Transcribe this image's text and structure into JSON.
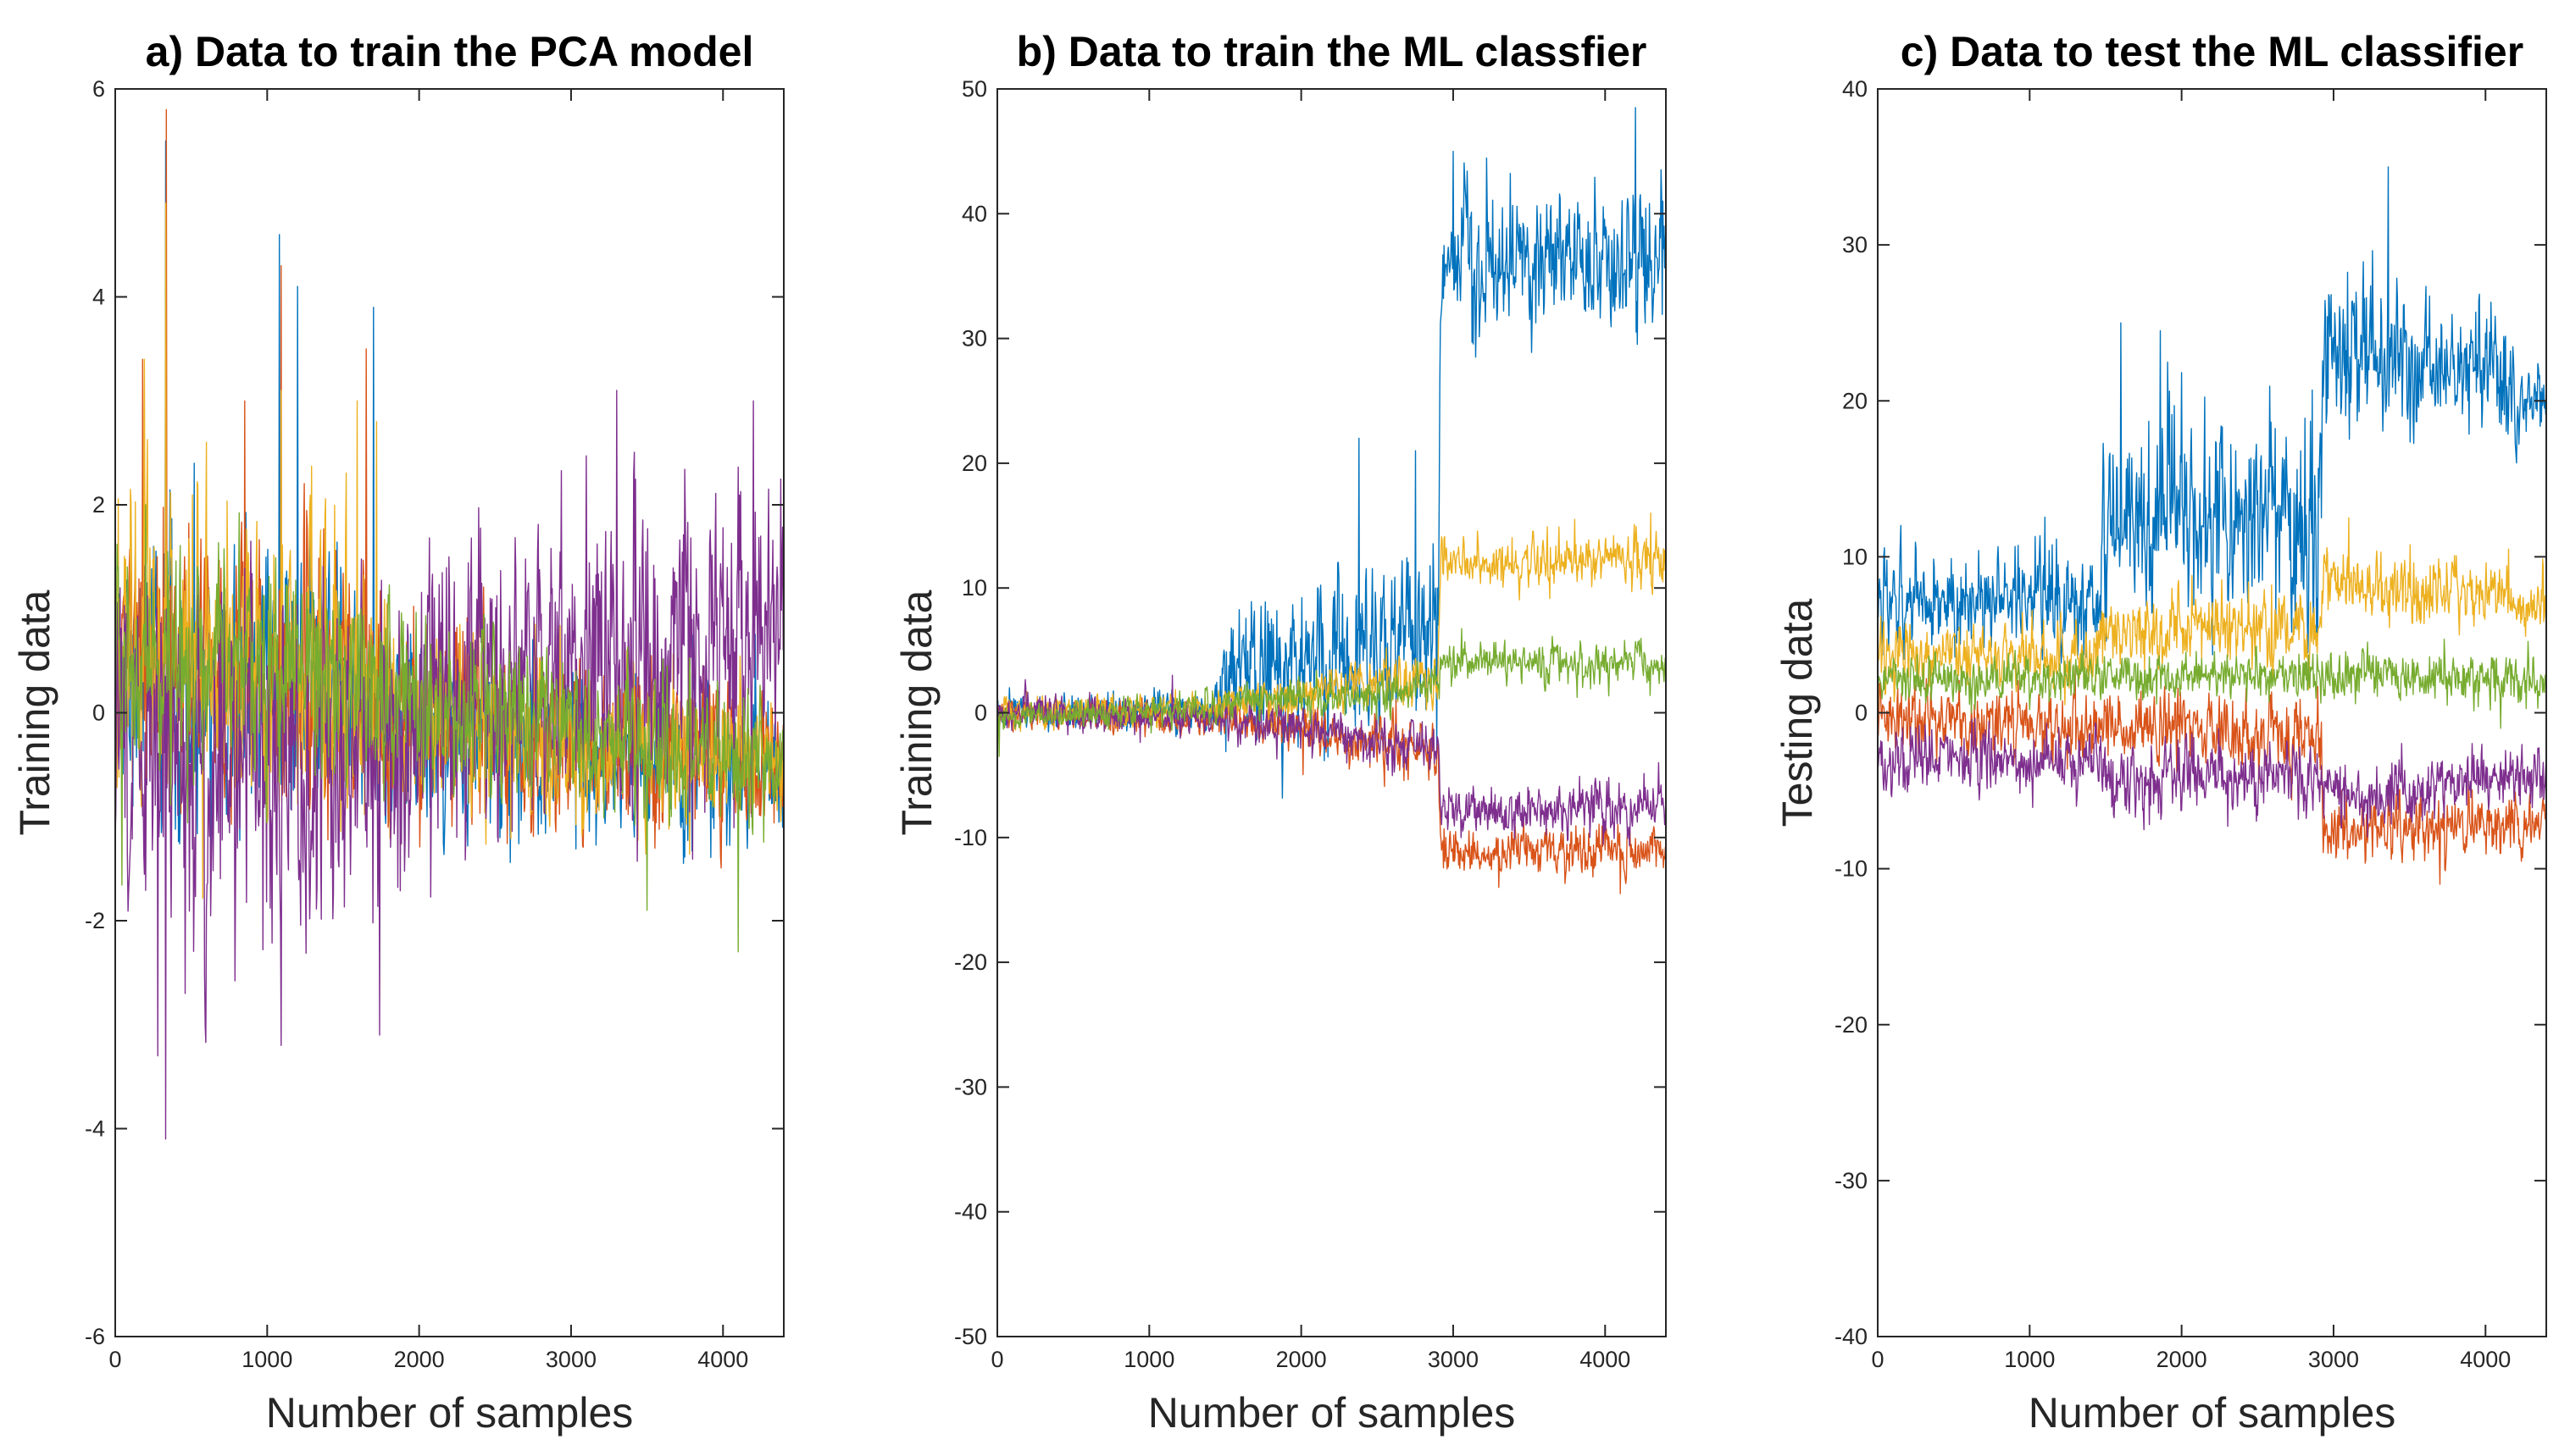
{
  "chart_data": [
    {
      "type": "line",
      "title": "a) Data to train the PCA model",
      "xlabel": "Number of samples",
      "ylabel": "Training data",
      "xlim": [
        0,
        4400
      ],
      "ylim": [
        -6,
        6
      ],
      "xticks": [
        0,
        1000,
        2000,
        3000,
        4000
      ],
      "yticks": [
        -6,
        -4,
        -2,
        0,
        2,
        4,
        6
      ],
      "grid": false,
      "legend": "none",
      "series": [
        {
          "name": "series-1",
          "color": "#0072BD",
          "stats": [
            [
              0,
              0.3,
              0.8
            ],
            [
              1500,
              0.3,
              0.8
            ],
            [
              1700,
              0.1,
              0.6
            ],
            [
              3300,
              -0.4,
              0.5
            ],
            [
              4400,
              -0.5,
              0.4
            ]
          ],
          "spikes": [
            [
              330,
              5.5
            ],
            [
              1080,
              4.6
            ],
            [
              1200,
              4.1
            ],
            [
              1700,
              3.9
            ],
            [
              520,
              2.4
            ]
          ]
        },
        {
          "name": "series-2",
          "color": "#D95319",
          "stats": [
            [
              0,
              0.4,
              0.9
            ],
            [
              1500,
              0.3,
              0.8
            ],
            [
              1700,
              0.1,
              0.6
            ],
            [
              3300,
              -0.4,
              0.5
            ],
            [
              4400,
              -0.4,
              0.4
            ]
          ],
          "spikes": [
            [
              335,
              5.8
            ],
            [
              1090,
              4.3
            ],
            [
              180,
              3.4
            ],
            [
              1650,
              3.5
            ],
            [
              850,
              3.0
            ]
          ]
        },
        {
          "name": "series-3",
          "color": "#EDB120",
          "stats": [
            [
              0,
              0.5,
              1.0
            ],
            [
              1500,
              0.4,
              0.9
            ],
            [
              1700,
              0.0,
              0.6
            ],
            [
              3300,
              -0.4,
              0.5
            ],
            [
              4400,
              -0.4,
              0.4
            ]
          ],
          "spikes": [
            [
              330,
              4.9
            ],
            [
              190,
              3.4
            ],
            [
              1090,
              3.1
            ],
            [
              1720,
              2.8
            ],
            [
              600,
              2.6
            ],
            [
              1590,
              3.0
            ]
          ]
        },
        {
          "name": "series-4",
          "color": "#7E2F8E",
          "stats": [
            [
              0,
              -0.5,
              1.0
            ],
            [
              1200,
              -0.5,
              1.0
            ],
            [
              2000,
              0.0,
              1.0
            ],
            [
              3200,
              0.6,
              0.9
            ],
            [
              4400,
              0.9,
              0.9
            ]
          ],
          "spikes": [
            [
              330,
              -4.1
            ],
            [
              280,
              -3.3
            ],
            [
              1090,
              -3.2
            ],
            [
              1740,
              -3.1
            ],
            [
              460,
              -2.7
            ],
            [
              3300,
              3.1
            ],
            [
              4200,
              3.0
            ]
          ]
        },
        {
          "name": "series-5",
          "color": "#77AC30",
          "stats": [
            [
              0,
              0.5,
              0.6
            ],
            [
              1500,
              0.4,
              0.6
            ],
            [
              2200,
              0.0,
              0.5
            ],
            [
              3300,
              -0.3,
              0.4
            ],
            [
              4400,
              -0.5,
              0.4
            ]
          ],
          "spikes": [
            [
              200,
              2.0
            ],
            [
              4100,
              -2.3
            ],
            [
              3500,
              -1.9
            ]
          ]
        }
      ]
    },
    {
      "type": "line",
      "title": "b) Data to train the ML classfier",
      "xlabel": "Number of samples",
      "ylabel": "Training data",
      "xlim": [
        0,
        4400
      ],
      "ylim": [
        -50,
        50
      ],
      "xticks": [
        0,
        1000,
        2000,
        3000,
        4000
      ],
      "yticks": [
        -50,
        -40,
        -30,
        -20,
        -10,
        0,
        10,
        20,
        30,
        40,
        50
      ],
      "grid": false,
      "legend": "none",
      "series": [
        {
          "name": "series-1",
          "color": "#0072BD",
          "stats": [
            [
              0,
              0.0,
              0.8
            ],
            [
              1400,
              0.3,
              1.0
            ],
            [
              1500,
              3.0,
              3.5
            ],
            [
              2900,
              6.0,
              4.5
            ],
            [
              2920,
              36.0,
              3.5
            ],
            [
              4400,
              37.0,
              3.5
            ]
          ],
          "spikes": [
            [
              2380,
              22.0
            ],
            [
              2750,
              21.0
            ],
            [
              4200,
              48.5
            ],
            [
              3000,
              45.0
            ]
          ]
        },
        {
          "name": "series-2",
          "color": "#D95319",
          "stats": [
            [
              0,
              0.0,
              0.8
            ],
            [
              1400,
              -0.5,
              0.8
            ],
            [
              2900,
              -3.0,
              1.5
            ],
            [
              2920,
              -11.0,
              1.2
            ],
            [
              4400,
              -11.0,
              1.2
            ]
          ],
          "spikes": [
            [
              3300,
              -14.0
            ],
            [
              4100,
              -14.5
            ]
          ]
        },
        {
          "name": "series-3",
          "color": "#EDB120",
          "stats": [
            [
              0,
              0.0,
              0.8
            ],
            [
              1400,
              0.5,
              0.8
            ],
            [
              2900,
              3.0,
              1.5
            ],
            [
              2920,
              12.0,
              1.3
            ],
            [
              4400,
              12.5,
              1.3
            ]
          ],
          "spikes": [
            [
              3800,
              15.5
            ],
            [
              4300,
              16.0
            ]
          ]
        },
        {
          "name": "series-4",
          "color": "#7E2F8E",
          "stats": [
            [
              0,
              0.0,
              0.9
            ],
            [
              1400,
              -0.5,
              0.9
            ],
            [
              2900,
              -3.0,
              1.4
            ],
            [
              2920,
              -8.0,
              1.2
            ],
            [
              4400,
              -7.5,
              1.2
            ]
          ],
          "spikes": [
            [
              1150,
              3.0
            ],
            [
              4350,
              -4.0
            ]
          ]
        },
        {
          "name": "series-5",
          "color": "#77AC30",
          "stats": [
            [
              0,
              -0.5,
              0.6
            ],
            [
              1400,
              0.5,
              0.8
            ],
            [
              2900,
              2.0,
              1.0
            ],
            [
              2920,
              4.0,
              1.0
            ],
            [
              4400,
              4.0,
              1.0
            ]
          ],
          "spikes": [
            [
              10,
              -3.5
            ]
          ]
        }
      ]
    },
    {
      "type": "line",
      "title": "c) Data to test the ML classifier",
      "xlabel": "Number of samples",
      "ylabel": "Testing data",
      "xlim": [
        0,
        4400
      ],
      "ylim": [
        -40,
        40
      ],
      "xticks": [
        0,
        1000,
        2000,
        3000,
        4000
      ],
      "yticks": [
        -40,
        -30,
        -20,
        -10,
        0,
        10,
        20,
        30,
        40
      ],
      "grid": false,
      "legend": "none",
      "series": [
        {
          "name": "series-1",
          "color": "#0072BD",
          "stats": [
            [
              0,
              7.0,
              2.0
            ],
            [
              1470,
              7.0,
              2.0
            ],
            [
              1480,
              13.0,
              4.0
            ],
            [
              2920,
              13.0,
              4.0
            ],
            [
              2930,
              24.0,
              3.5
            ],
            [
              4000,
              22.0,
              2.5
            ],
            [
              4400,
              20.0,
              1.5
            ]
          ],
          "spikes": [
            [
              3360,
              35.0
            ],
            [
              1600,
              25.0
            ],
            [
              1860,
              24.5
            ],
            [
              150,
              12.0
            ]
          ]
        },
        {
          "name": "series-2",
          "color": "#D95319",
          "stats": [
            [
              0,
              -0.5,
              1.2
            ],
            [
              2920,
              -1.5,
              1.5
            ],
            [
              2930,
              -7.5,
              1.3
            ],
            [
              4400,
              -7.0,
              1.2
            ]
          ],
          "spikes": [
            [
              3700,
              -11.0
            ]
          ]
        },
        {
          "name": "series-3",
          "color": "#EDB120",
          "stats": [
            [
              0,
              3.5,
              1.2
            ],
            [
              1470,
              4.0,
              1.2
            ],
            [
              1480,
              5.5,
              1.5
            ],
            [
              2920,
              5.5,
              1.5
            ],
            [
              2930,
              8.5,
              1.5
            ],
            [
              4400,
              7.0,
              1.2
            ]
          ],
          "spikes": [
            [
              3100,
              12.5
            ],
            [
              4150,
              10.5
            ]
          ]
        },
        {
          "name": "series-4",
          "color": "#7E2F8E",
          "stats": [
            [
              0,
              -3.0,
              1.2
            ],
            [
              1470,
              -3.0,
              1.2
            ],
            [
              1480,
              -4.0,
              1.5
            ],
            [
              2920,
              -4.0,
              1.5
            ],
            [
              2930,
              -5.5,
              1.3
            ],
            [
              4400,
              -4.0,
              1.2
            ]
          ],
          "spikes": [
            [
              1750,
              -7.5
            ]
          ]
        },
        {
          "name": "series-5",
          "color": "#77AC30",
          "stats": [
            [
              0,
              2.0,
              0.9
            ],
            [
              2920,
              2.5,
              1.0
            ],
            [
              2930,
              2.5,
              1.0
            ],
            [
              4400,
              2.0,
              1.0
            ]
          ],
          "spikes": [
            [
              4100,
              -1.0
            ],
            [
              0,
              -1.5
            ]
          ]
        }
      ]
    }
  ]
}
